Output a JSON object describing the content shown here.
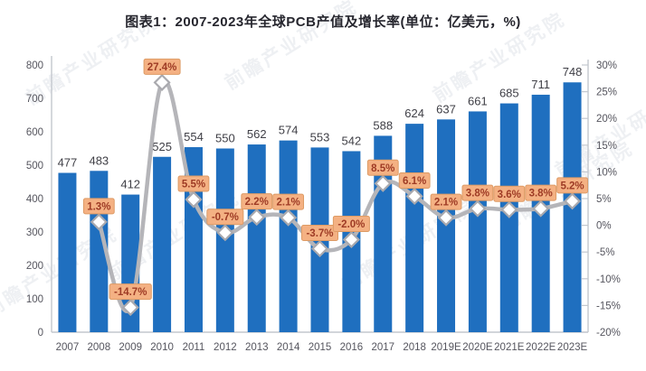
{
  "title": "图表1：2007-2023年全球PCB产值及增长率(单位：亿美元，%)",
  "watermark_text": "前瞻产业研究院",
  "chart_data": {
    "type": "bar",
    "subtype": "bar-line-combo",
    "title": "图表1：2007-2023年全球PCB产值及增长率(单位：亿美元，%)",
    "categories": [
      "2007",
      "2008",
      "2009",
      "2010",
      "2011",
      "2012",
      "2013",
      "2014",
      "2015",
      "2016",
      "2017",
      "2018",
      "2019E",
      "2020E",
      "2021E",
      "2022E",
      "2023E"
    ],
    "series": [
      {
        "name": "全球PCB产值(亿美元)",
        "type": "bar",
        "axis": "left",
        "values": [
          477,
          483,
          412,
          525,
          554,
          550,
          562,
          574,
          553,
          542,
          588,
          624,
          637,
          661,
          685,
          711,
          748
        ],
        "labels": [
          "477",
          "483",
          "412",
          "525",
          "554",
          "550",
          "562",
          "574",
          "553",
          "542",
          "588",
          "624",
          "637",
          "661",
          "685",
          "711",
          "748"
        ]
      },
      {
        "name": "增长率(%)",
        "type": "line",
        "axis": "right",
        "marker": "diamond",
        "values": [
          null,
          1.3,
          -14.7,
          27.4,
          5.5,
          -0.7,
          2.2,
          2.1,
          -3.7,
          -2.0,
          8.5,
          6.1,
          2.1,
          3.8,
          3.6,
          3.8,
          5.2
        ],
        "labels": [
          null,
          "1.3%",
          "-14.7%",
          "27.4%",
          "5.5%",
          "-0.7%",
          "2.2%",
          "2.1%",
          "-3.7%",
          "-2.0%",
          "8.5%",
          "6.1%",
          "2.1%",
          "3.8%",
          "3.6%",
          "3.8%",
          "5.2%"
        ]
      }
    ],
    "left_axis": {
      "min": 0,
      "max": 800,
      "tick_labels": [
        "800",
        "700",
        "600",
        "500",
        "400",
        "300",
        "200",
        "100",
        "0"
      ]
    },
    "right_axis": {
      "min": -20,
      "max": 30,
      "tick_labels": [
        "30%",
        "25%",
        "20%",
        "15%",
        "10%",
        "5%",
        "0%",
        "-5%",
        "-10%",
        "-15%",
        "-20%"
      ]
    },
    "legend": "none",
    "grid": "off",
    "colors": {
      "bar": "#1f6fbf",
      "line": "#b5b5b9",
      "marker_fill": "#ffffff",
      "marker_stroke": "#a9a9ae",
      "label_box_bg": "#f4b183",
      "label_box_border": "#dd9b65",
      "label_box_text": "#9e3b25",
      "bar_value_text": "#3f3f46",
      "axis_text": "#55555e",
      "axis_line": "#c3c7ce"
    }
  }
}
